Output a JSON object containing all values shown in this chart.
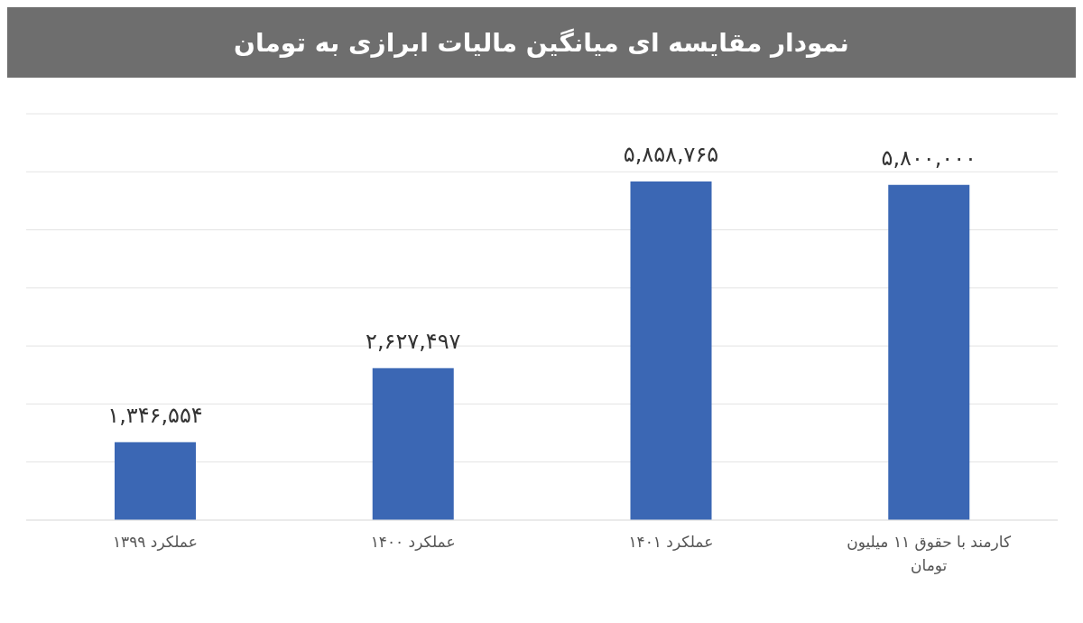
{
  "chart_data": {
    "type": "bar",
    "title": "نمودار مقایسه ای میانگین مالیات ابرازی به تومان",
    "categories": [
      "عملکرد ۱۳۹۹",
      "عملکرد ۱۴۰۰",
      "عملکرد ۱۴۰۱",
      "کارمند با حقوق ۱۱ میلیون تومان"
    ],
    "values": [
      1346554,
      2627497,
      5858765,
      5800000
    ],
    "value_labels": [
      "۱,۳۴۶,۵۵۴",
      "۲,۶۲۷,۴۹۷",
      "۵,۸۵۸,۷۶۵",
      "۵,۸۰۰,۰۰۰"
    ],
    "color": "#3b67b4",
    "grid": "y",
    "tick_labels": "x"
  }
}
